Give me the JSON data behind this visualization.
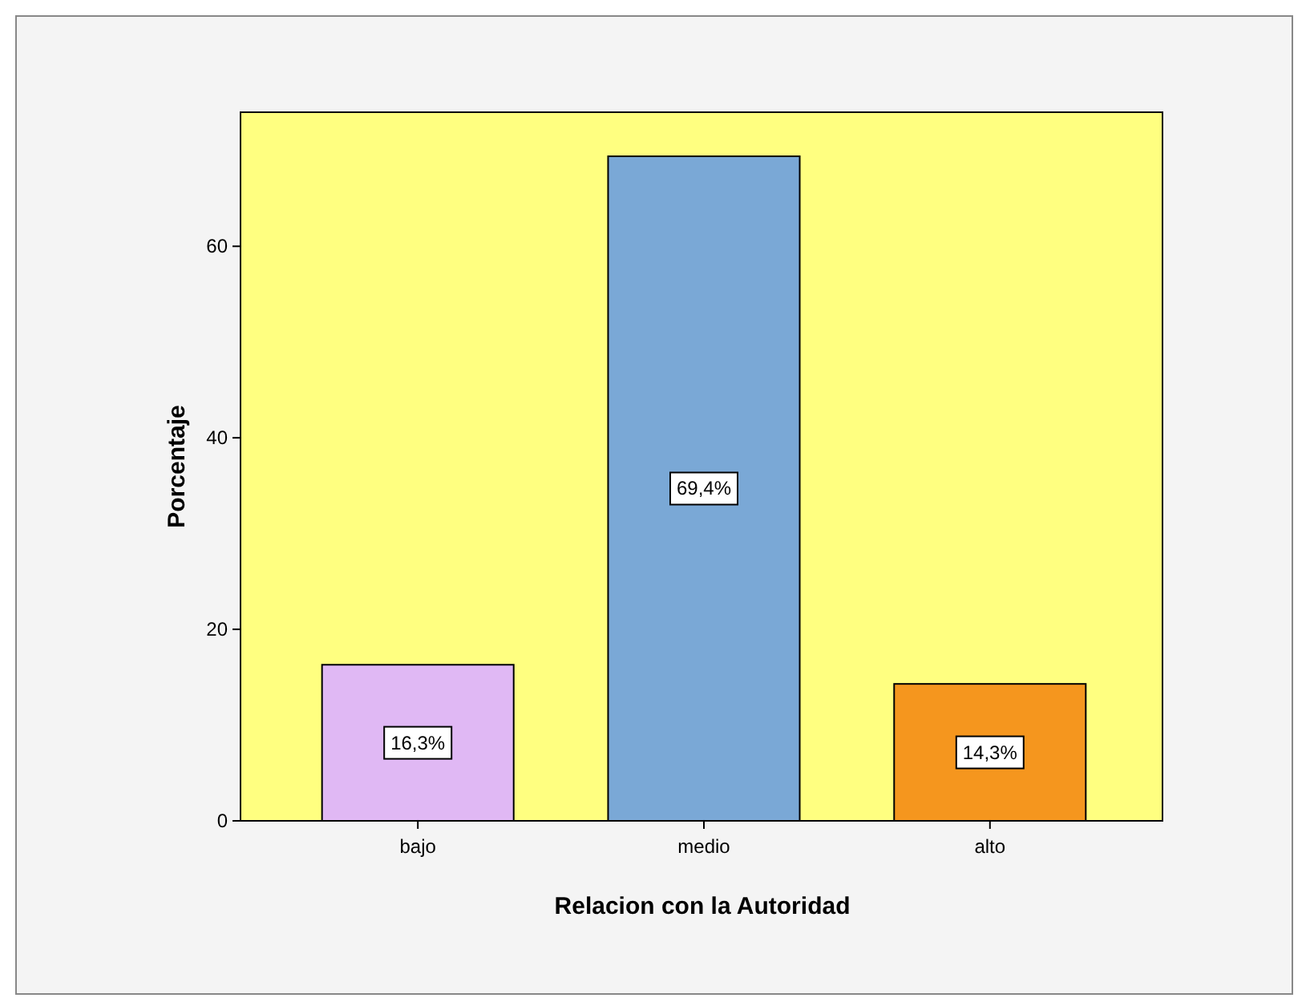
{
  "chart_data": {
    "type": "bar",
    "xlabel": "Relacion con la Autoridad",
    "ylabel": "Porcentaje",
    "categories": [
      "bajo",
      "medio",
      "alto"
    ],
    "values": [
      16.3,
      69.4,
      14.3
    ],
    "colors": [
      "#e0b8f4",
      "#7aa8d6",
      "#f5961e"
    ],
    "value_labels": [
      "16,3%",
      "69,4%",
      "14,3%"
    ],
    "ylim": [
      0,
      74
    ],
    "yticks": [
      0,
      20,
      40,
      60
    ],
    "grid": false
  }
}
